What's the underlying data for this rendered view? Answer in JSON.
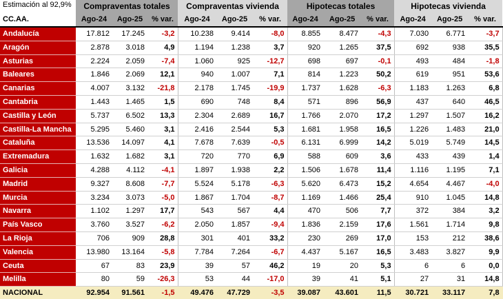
{
  "note": "Estimación al 92,9%",
  "corner_label": "CC.AA.",
  "groups": [
    "Compraventas totales",
    "Compraventas vivienda",
    "Hipotecas totales",
    "Hipotecas vivienda"
  ],
  "subheaders": [
    "Ago-24",
    "Ago-25",
    "% var."
  ],
  "rows": [
    {
      "region": "Andalucía",
      "values": [
        "17.812",
        "17.245",
        "-3,2",
        "10.238",
        "9.414",
        "-8,0",
        "8.855",
        "8.477",
        "-4,3",
        "7.030",
        "6.771",
        "-3,7"
      ]
    },
    {
      "region": "Aragón",
      "values": [
        "2.878",
        "3.018",
        "4,9",
        "1.194",
        "1.238",
        "3,7",
        "920",
        "1.265",
        "37,5",
        "692",
        "938",
        "35,5"
      ]
    },
    {
      "region": "Asturias",
      "values": [
        "2.224",
        "2.059",
        "-7,4",
        "1.060",
        "925",
        "-12,7",
        "698",
        "697",
        "-0,1",
        "493",
        "484",
        "-1,8"
      ]
    },
    {
      "region": "Baleares",
      "values": [
        "1.846",
        "2.069",
        "12,1",
        "940",
        "1.007",
        "7,1",
        "814",
        "1.223",
        "50,2",
        "619",
        "951",
        "53,6"
      ]
    },
    {
      "region": "Canarias",
      "values": [
        "4.007",
        "3.132",
        "-21,8",
        "2.178",
        "1.745",
        "-19,9",
        "1.737",
        "1.628",
        "-6,3",
        "1.183",
        "1.263",
        "6,8"
      ]
    },
    {
      "region": "Cantabria",
      "values": [
        "1.443",
        "1.465",
        "1,5",
        "690",
        "748",
        "8,4",
        "571",
        "896",
        "56,9",
        "437",
        "640",
        "46,5"
      ]
    },
    {
      "region": "Castilla y León",
      "values": [
        "5.737",
        "6.502",
        "13,3",
        "2.304",
        "2.689",
        "16,7",
        "1.766",
        "2.070",
        "17,2",
        "1.297",
        "1.507",
        "16,2"
      ]
    },
    {
      "region": "Castilla-La Mancha",
      "values": [
        "5.295",
        "5.460",
        "3,1",
        "2.416",
        "2.544",
        "5,3",
        "1.681",
        "1.958",
        "16,5",
        "1.226",
        "1.483",
        "21,0"
      ]
    },
    {
      "region": "Cataluña",
      "values": [
        "13.536",
        "14.097",
        "4,1",
        "7.678",
        "7.639",
        "-0,5",
        "6.131",
        "6.999",
        "14,2",
        "5.019",
        "5.749",
        "14,5"
      ]
    },
    {
      "region": "Extremadura",
      "values": [
        "1.632",
        "1.682",
        "3,1",
        "720",
        "770",
        "6,9",
        "588",
        "609",
        "3,6",
        "433",
        "439",
        "1,4"
      ]
    },
    {
      "region": "Galicia",
      "values": [
        "4.288",
        "4.112",
        "-4,1",
        "1.897",
        "1.938",
        "2,2",
        "1.506",
        "1.678",
        "11,4",
        "1.116",
        "1.195",
        "7,1"
      ]
    },
    {
      "region": "Madrid",
      "values": [
        "9.327",
        "8.608",
        "-7,7",
        "5.524",
        "5.178",
        "-6,3",
        "5.620",
        "6.473",
        "15,2",
        "4.654",
        "4.467",
        "-4,0"
      ]
    },
    {
      "region": "Murcia",
      "values": [
        "3.234",
        "3.073",
        "-5,0",
        "1.867",
        "1.704",
        "-8,7",
        "1.169",
        "1.466",
        "25,4",
        "910",
        "1.045",
        "14,8"
      ]
    },
    {
      "region": "Navarra",
      "values": [
        "1.102",
        "1.297",
        "17,7",
        "543",
        "567",
        "4,4",
        "470",
        "506",
        "7,7",
        "372",
        "384",
        "3,2"
      ]
    },
    {
      "region": "País Vasco",
      "values": [
        "3.760",
        "3.527",
        "-6,2",
        "2.050",
        "1.857",
        "-9,4",
        "1.836",
        "2.159",
        "17,6",
        "1.561",
        "1.714",
        "9,8"
      ]
    },
    {
      "region": "La Rioja",
      "values": [
        "706",
        "909",
        "28,8",
        "301",
        "401",
        "33,2",
        "230",
        "269",
        "17,0",
        "153",
        "212",
        "38,6"
      ]
    },
    {
      "region": "Valencia",
      "values": [
        "13.980",
        "13.164",
        "-5,8",
        "7.784",
        "7.264",
        "-6,7",
        "4.437",
        "5.167",
        "16,5",
        "3.483",
        "3.827",
        "9,9"
      ]
    },
    {
      "region": "Ceuta",
      "values": [
        "67",
        "83",
        "23,9",
        "39",
        "57",
        "46,2",
        "19",
        "20",
        "5,3",
        "6",
        "6",
        "0,0"
      ]
    },
    {
      "region": "Melilla",
      "values": [
        "80",
        "59",
        "-26,3",
        "53",
        "44",
        "-17,0",
        "39",
        "41",
        "5,1",
        "27",
        "31",
        "14,8"
      ]
    }
  ],
  "total": {
    "region": "NACIONAL",
    "values": [
      "92.954",
      "91.561",
      "-1,5",
      "49.476",
      "47.729",
      "-3,5",
      "39.087",
      "43.601",
      "11,5",
      "30.721",
      "33.117",
      "7,8"
    ]
  },
  "colors": {
    "region_bg": "#c00000",
    "negative": "#c00000",
    "total_bg": "#f5ecc0",
    "header_dark": "#a6a6a6",
    "header_light": "#d9d9d9"
  }
}
